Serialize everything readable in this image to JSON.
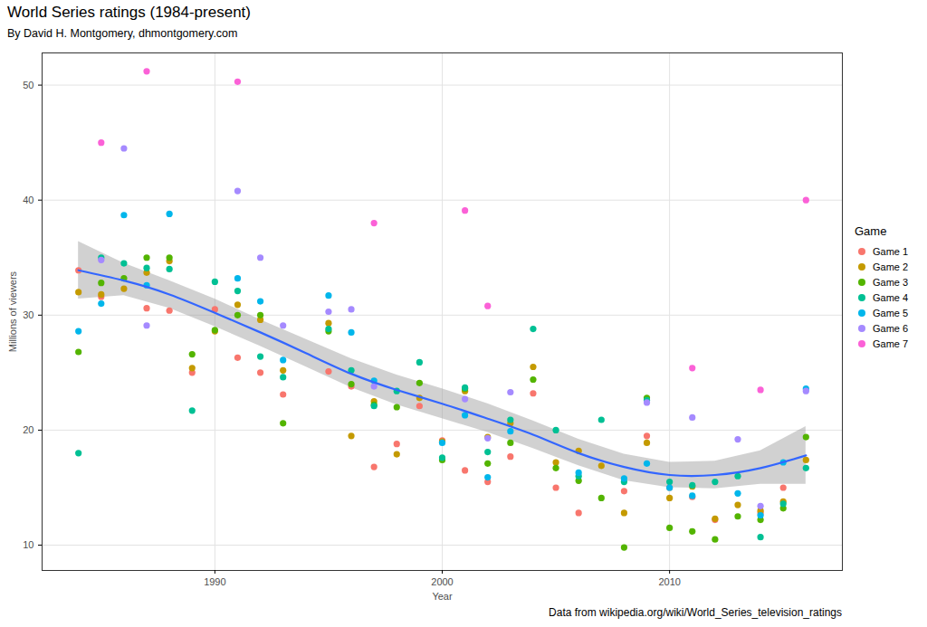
{
  "chart_data": {
    "type": "scatter",
    "title": "World Series ratings (1984-present)",
    "subtitle": "By David H. Montgomery, dhmontgomery.com",
    "caption": "Data from wikipedia.org/wiki/World_Series_television_ratings",
    "x_label": "Year",
    "y_label": "Millions of viewers",
    "legend_title": "Game",
    "legend": "right",
    "grid": true,
    "xlim": [
      1982.4,
      2017.6
    ],
    "ylim": [
      7.8,
      52.8
    ],
    "xticks": [
      1990,
      2000,
      2010
    ],
    "yticks": [
      10,
      20,
      30,
      40,
      50
    ],
    "x": [
      1984,
      1985,
      1986,
      1987,
      1988,
      1989,
      1990,
      1991,
      1992,
      1993,
      1995,
      1996,
      1997,
      1998,
      1999,
      2000,
      2001,
      2002,
      2003,
      2004,
      2005,
      2006,
      2007,
      2008,
      2009,
      2010,
      2011,
      2012,
      2013,
      2014,
      2015,
      2016
    ],
    "series": [
      {
        "name": "Game 1",
        "color": "#F8766D",
        "values": [
          33.9,
          31.6,
          null,
          30.6,
          30.4,
          25.0,
          30.5,
          26.3,
          25.0,
          23.1,
          25.1,
          23.8,
          16.8,
          18.8,
          22.1,
          19.1,
          16.5,
          15.5,
          17.7,
          23.2,
          15.0,
          12.8,
          null,
          14.7,
          19.5,
          15.0,
          14.2,
          12.2,
          null,
          12.8,
          15.0,
          null
        ]
      },
      {
        "name": "Game 2",
        "color": "#C49A00",
        "values": [
          32.0,
          31.8,
          32.3,
          33.7,
          34.7,
          25.4,
          28.6,
          30.9,
          29.6,
          25.2,
          29.3,
          19.5,
          22.5,
          17.9,
          22.8,
          19.0,
          23.4,
          19.4,
          20.6,
          25.5,
          17.2,
          18.2,
          16.9,
          12.8,
          18.9,
          14.1,
          15.1,
          12.3,
          13.5,
          13.0,
          13.8,
          17.4
        ]
      },
      {
        "name": "Game 3",
        "color": "#53B400",
        "values": [
          26.8,
          32.8,
          33.2,
          35.0,
          35.0,
          26.6,
          28.7,
          30.0,
          30.0,
          20.6,
          28.6,
          24.0,
          22.2,
          22.0,
          24.1,
          17.4,
          23.6,
          17.1,
          18.9,
          24.4,
          16.7,
          15.6,
          14.1,
          9.8,
          22.8,
          11.5,
          11.2,
          10.5,
          12.5,
          12.2,
          13.2,
          19.4
        ]
      },
      {
        "name": "Game 4",
        "color": "#00C094",
        "values": [
          18.0,
          35.0,
          34.5,
          34.1,
          34.0,
          21.7,
          32.9,
          32.1,
          26.4,
          24.6,
          28.8,
          25.2,
          22.1,
          23.4,
          25.9,
          17.6,
          23.7,
          18.1,
          20.9,
          28.8,
          20.0,
          16.0,
          20.9,
          15.5,
          22.6,
          15.5,
          15.2,
          15.5,
          16.0,
          10.7,
          13.6,
          16.7
        ]
      },
      {
        "name": "Game 5",
        "color": "#00B6EB",
        "values": [
          28.6,
          31.0,
          38.7,
          32.6,
          38.8,
          null,
          null,
          33.2,
          31.2,
          26.1,
          31.7,
          28.5,
          24.3,
          null,
          null,
          18.9,
          21.3,
          15.9,
          19.9,
          null,
          null,
          16.3,
          null,
          15.8,
          17.1,
          15.0,
          14.3,
          null,
          14.5,
          12.6,
          17.2,
          23.6
        ]
      },
      {
        "name": "Game 6",
        "color": "#A58AFF",
        "values": [
          null,
          34.8,
          44.5,
          29.1,
          null,
          null,
          null,
          40.8,
          35.0,
          29.1,
          30.3,
          30.5,
          23.8,
          null,
          null,
          null,
          22.7,
          19.3,
          23.3,
          null,
          null,
          null,
          null,
          null,
          22.4,
          null,
          21.1,
          null,
          19.2,
          13.4,
          null,
          23.4
        ]
      },
      {
        "name": "Game 7",
        "color": "#FB61D7",
        "values": [
          null,
          45.0,
          null,
          51.2,
          null,
          null,
          null,
          50.3,
          null,
          null,
          null,
          null,
          38.0,
          null,
          null,
          null,
          39.1,
          30.8,
          null,
          null,
          null,
          null,
          null,
          null,
          null,
          null,
          25.4,
          null,
          null,
          23.5,
          null,
          40.0
        ]
      }
    ],
    "trend": {
      "type": "line",
      "color": "#3366FF",
      "x": [
        1984,
        1986,
        1988,
        1990,
        1992,
        1994,
        1996,
        1998,
        2000,
        2002,
        2004,
        2006,
        2008,
        2010,
        2012,
        2014,
        2016
      ],
      "values": [
        33.9,
        33.0,
        31.8,
        30.2,
        28.5,
        26.7,
        24.9,
        23.5,
        22.3,
        21.0,
        19.6,
        18.0,
        16.8,
        16.1,
        16.1,
        16.7,
        17.8
      ],
      "lower": [
        31.4,
        31.7,
        30.6,
        29.0,
        27.3,
        25.5,
        23.7,
        22.2,
        21.0,
        19.8,
        18.4,
        16.9,
        15.6,
        15.0,
        14.9,
        15.3,
        15.3
      ],
      "upper": [
        36.4,
        34.5,
        33.0,
        31.4,
        29.6,
        27.9,
        26.2,
        24.8,
        23.6,
        22.3,
        20.8,
        19.2,
        17.9,
        17.2,
        17.3,
        18.2,
        20.3
      ]
    }
  }
}
